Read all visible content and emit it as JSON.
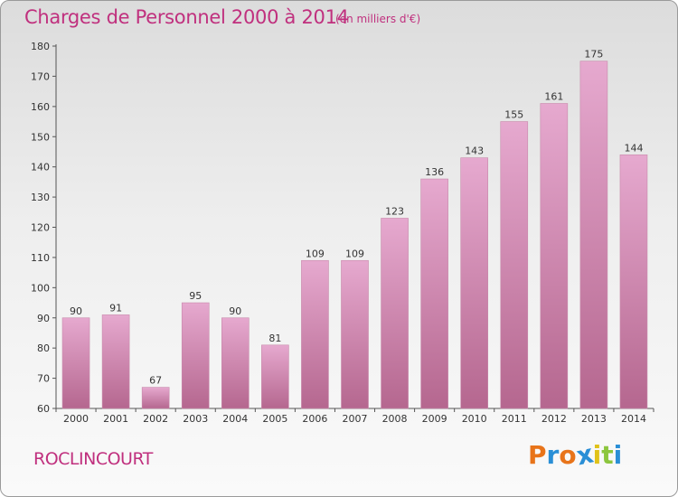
{
  "header": {
    "title": "Charges de Personnel 2000 à 2014",
    "subtitle": "(en milliers d'€)"
  },
  "footer": {
    "commune": "ROCLINCOURT",
    "logo_letters": [
      "P",
      "r",
      "o",
      "x",
      "i",
      "t",
      "i"
    ],
    "logo_colors": [
      "#e8741a",
      "#2a8fd6",
      "#e8741a",
      "#2a8fd6",
      "#e0c21a",
      "#8cc63e",
      "#2a8fd6"
    ]
  },
  "chart_data": {
    "type": "bar",
    "title": "Charges de Personnel 2000 à 2014",
    "subtitle": "(en milliers d'€)",
    "categories": [
      "2000",
      "2001",
      "2002",
      "2003",
      "2004",
      "2005",
      "2006",
      "2007",
      "2008",
      "2009",
      "2010",
      "2011",
      "2012",
      "2013",
      "2014"
    ],
    "values": [
      90,
      91,
      67,
      95,
      90,
      81,
      109,
      109,
      123,
      136,
      143,
      155,
      161,
      175,
      144
    ],
    "ylim": [
      60,
      180
    ],
    "yticks": [
      60,
      70,
      80,
      90,
      100,
      110,
      120,
      130,
      140,
      150,
      160,
      170,
      180
    ],
    "grid": false,
    "colors": {
      "bar_top": "#e6a9cf",
      "bar_bottom": "#b5678f",
      "text": "#c0307e"
    }
  }
}
